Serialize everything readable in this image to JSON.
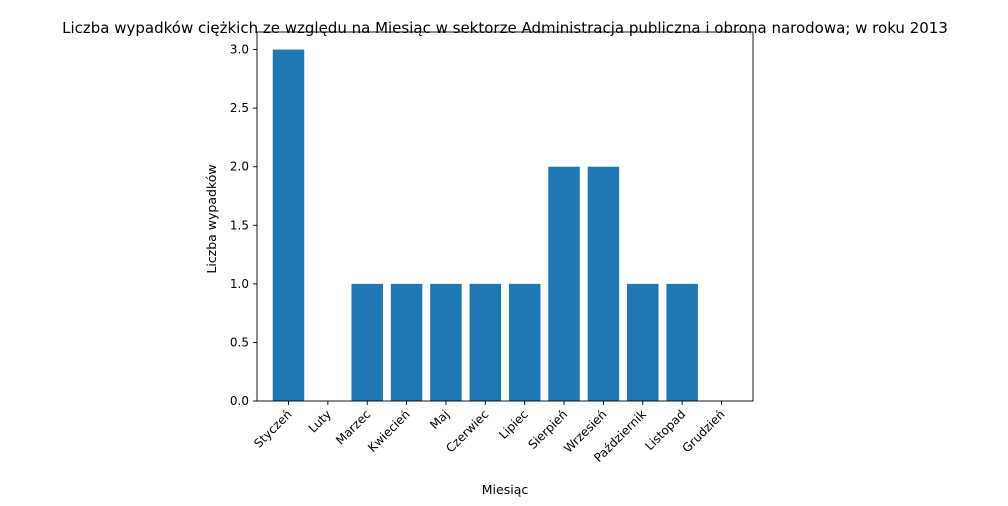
{
  "chart_data": {
    "type": "bar",
    "title": "Liczba wypadków ciężkich ze względu na Miesiąc w sektorze Administracja publiczna i obrona narodowa; w roku 2013",
    "xlabel": "Miesiąc",
    "ylabel": "Liczba wypadków",
    "categories": [
      "Styczeń",
      "Luty",
      "Marzec",
      "Kwiecień",
      "Maj",
      "Czerwiec",
      "Lipiec",
      "Sierpień",
      "Wrzesień",
      "Październik",
      "Listopad",
      "Grudzień"
    ],
    "values": [
      3,
      0,
      1,
      1,
      1,
      1,
      1,
      2,
      2,
      1,
      1,
      0
    ],
    "ylim": [
      0,
      3.15
    ],
    "yticks": [
      "0.0",
      "0.5",
      "1.0",
      "1.5",
      "2.0",
      "2.5",
      "3.0"
    ],
    "grid": false,
    "bar_color": "#1f77b4"
  }
}
